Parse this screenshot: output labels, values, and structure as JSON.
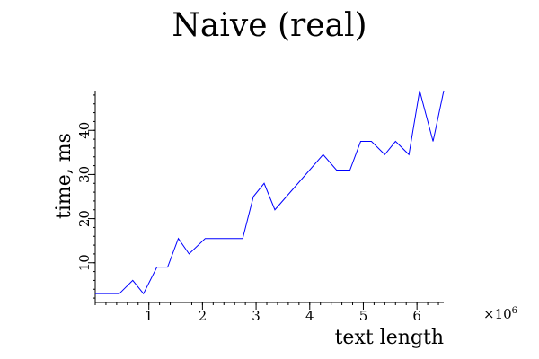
{
  "chart_data": {
    "type": "line",
    "title": "Naive (real)",
    "xlabel": "text length",
    "ylabel": "time, ms",
    "x_multiplier": {
      "base": "×10",
      "exponent": "6"
    },
    "xlim": [
      0.0,
      6.5
    ],
    "ylim": [
      1,
      49
    ],
    "xticks": [
      1,
      2,
      3,
      4,
      5,
      6
    ],
    "xtick_labels": [
      "1",
      "2",
      "3",
      "4",
      "5",
      "6"
    ],
    "yticks": [
      10,
      20,
      30,
      40
    ],
    "ytick_labels": [
      "10",
      "20",
      "30",
      "40"
    ],
    "grid": false,
    "series": [
      {
        "color": "#0000ff",
        "x": [
          0.0,
          0.45,
          0.7,
          0.9,
          1.15,
          1.35,
          1.55,
          1.75,
          2.05,
          2.35,
          2.75,
          2.95,
          3.15,
          3.35,
          4.25,
          4.5,
          4.75,
          4.95,
          5.15,
          5.4,
          5.6,
          5.85,
          6.05,
          6.3,
          6.5
        ],
        "y": [
          3,
          3,
          6,
          3,
          9,
          9,
          15.5,
          12,
          15.5,
          15.5,
          15.5,
          25,
          28,
          22,
          34.5,
          31,
          31,
          37.5,
          37.5,
          34.5,
          37.5,
          34.5,
          49,
          37.5,
          49
        ]
      }
    ]
  }
}
